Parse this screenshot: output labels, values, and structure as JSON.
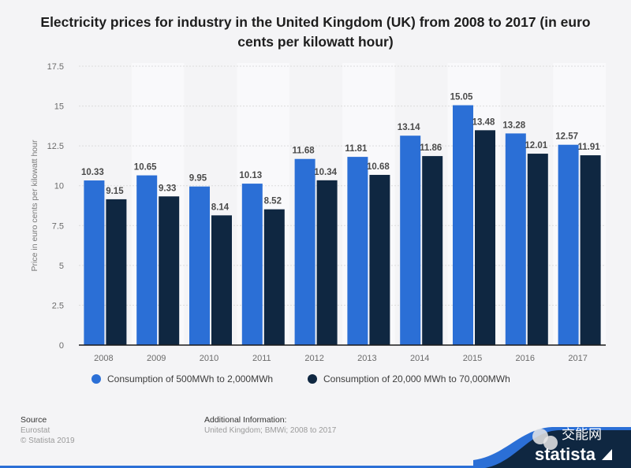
{
  "chart_data": {
    "type": "bar",
    "title": "Electricity prices for industry in the United Kingdom (UK) from 2008 to 2017 (in euro cents per kilowatt hour)",
    "xlabel": "",
    "ylabel": "Price in euro cents per kilowatt hour",
    "ylim": [
      0,
      17.5
    ],
    "yticks": [
      "0",
      "2.5",
      "5",
      "7.5",
      "10",
      "12.5",
      "15",
      "17.5"
    ],
    "grid": true,
    "legend_position": "bottom-left",
    "categories": [
      "2008",
      "2009",
      "2010",
      "2011",
      "2012",
      "2013",
      "2014",
      "2015",
      "2016",
      "2017"
    ],
    "series": [
      {
        "name": "Consumption of 500MWh to 2,000MWh",
        "color": "#2b6fd6",
        "values": [
          10.33,
          10.65,
          9.95,
          10.13,
          11.68,
          11.81,
          13.14,
          15.05,
          13.28,
          12.57
        ]
      },
      {
        "name": "Consumption of 20,000 MWh to 70,000MWh",
        "color": "#0f2741",
        "values": [
          9.15,
          9.33,
          8.14,
          8.52,
          10.34,
          10.68,
          11.86,
          13.48,
          12.01,
          11.91
        ]
      }
    ]
  },
  "footer": {
    "source_heading": "Source",
    "source": "Eurostat",
    "copyright": "© Statista 2019",
    "additional_heading": "Additional Information:",
    "additional": "United Kingdom; BMWi; 2008 to 2017"
  },
  "branding": {
    "logo_text": "statista",
    "watermark_text": "交能网"
  }
}
